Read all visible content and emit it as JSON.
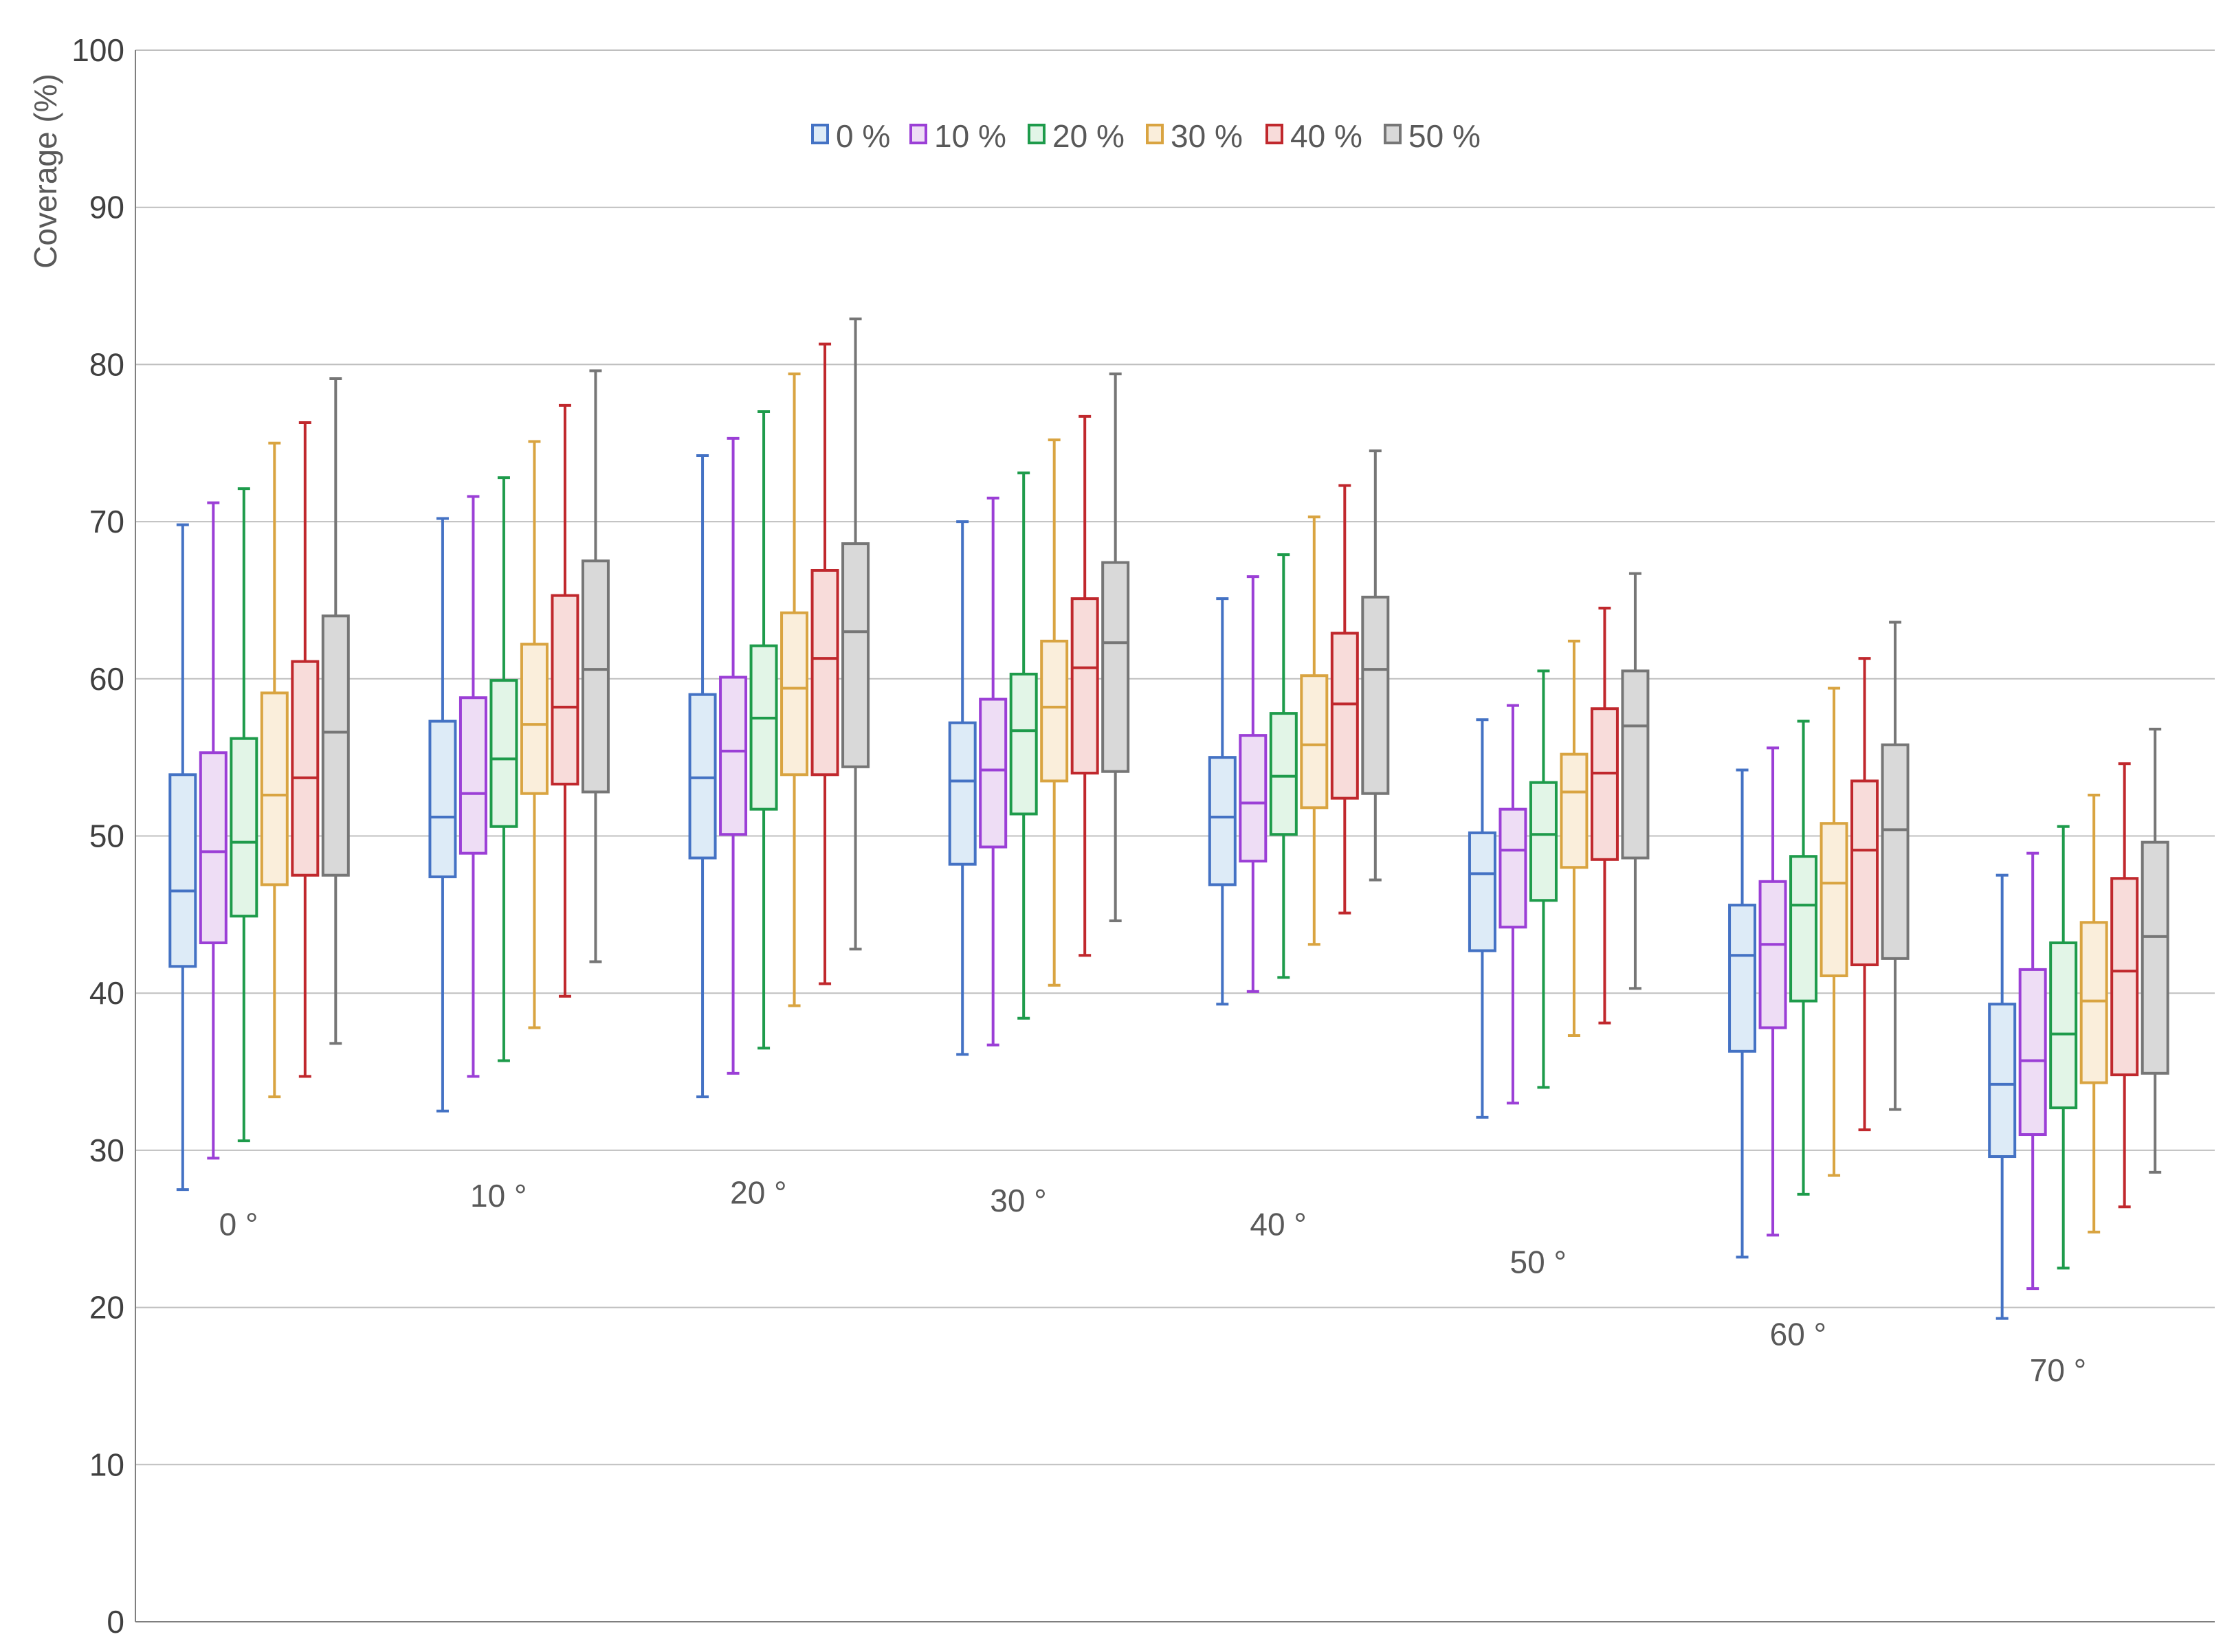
{
  "chart_data": {
    "type": "box",
    "ylabel": "Coverage (%)",
    "ylim": [
      0,
      100
    ],
    "yticks": [
      "0",
      "10",
      "20",
      "30",
      "40",
      "50",
      "60",
      "70",
      "80",
      "90",
      "100"
    ],
    "grid": true,
    "legend_position": "top-center",
    "categories": [
      "0 °",
      "10 °",
      "20 °",
      "30 °",
      "40 °",
      "50 °",
      "60 °",
      "70 °"
    ],
    "category_label_y": [
      25.3,
      27.1,
      27.3,
      26.8,
      25.3,
      22.9,
      18.3,
      16.0
    ],
    "series": [
      {
        "name": "0 %",
        "color": "#4472C4",
        "fill": "#DDEBF7",
        "boxes": [
          {
            "min": 27.5,
            "q1": 41.7,
            "median": 46.5,
            "q3": 53.9,
            "max": 69.8
          },
          {
            "min": 32.5,
            "q1": 47.4,
            "median": 51.2,
            "q3": 57.3,
            "max": 70.2
          },
          {
            "min": 33.4,
            "q1": 48.6,
            "median": 53.7,
            "q3": 59.0,
            "max": 74.2
          },
          {
            "min": 36.1,
            "q1": 48.2,
            "median": 53.5,
            "q3": 57.2,
            "max": 70.0
          },
          {
            "min": 39.3,
            "q1": 46.9,
            "median": 51.2,
            "q3": 55.0,
            "max": 65.1
          },
          {
            "min": 32.1,
            "q1": 42.7,
            "median": 47.6,
            "q3": 50.2,
            "max": 57.4
          },
          {
            "min": 23.2,
            "q1": 36.3,
            "median": 42.4,
            "q3": 45.6,
            "max": 54.2
          },
          {
            "min": 19.3,
            "q1": 29.6,
            "median": 34.2,
            "q3": 39.3,
            "max": 47.5
          }
        ]
      },
      {
        "name": "10 %",
        "color": "#9B3FD6",
        "fill": "#EEDDF5",
        "boxes": [
          {
            "min": 29.5,
            "q1": 43.2,
            "median": 49.0,
            "q3": 55.3,
            "max": 71.2
          },
          {
            "min": 34.7,
            "q1": 48.9,
            "median": 52.7,
            "q3": 58.8,
            "max": 71.6
          },
          {
            "min": 34.9,
            "q1": 50.1,
            "median": 55.4,
            "q3": 60.1,
            "max": 75.3
          },
          {
            "min": 36.7,
            "q1": 49.3,
            "median": 54.2,
            "q3": 58.7,
            "max": 71.5
          },
          {
            "min": 40.1,
            "q1": 48.4,
            "median": 52.1,
            "q3": 56.4,
            "max": 66.5
          },
          {
            "min": 33.0,
            "q1": 44.2,
            "median": 49.1,
            "q3": 51.7,
            "max": 58.3
          },
          {
            "min": 24.6,
            "q1": 37.8,
            "median": 43.1,
            "q3": 47.1,
            "max": 55.6
          },
          {
            "min": 21.2,
            "q1": 31.0,
            "median": 35.7,
            "q3": 41.5,
            "max": 48.9
          }
        ]
      },
      {
        "name": "20 %",
        "color": "#1E9B4B",
        "fill": "#E2F5E7",
        "boxes": [
          {
            "min": 30.6,
            "q1": 44.9,
            "median": 49.6,
            "q3": 56.2,
            "max": 72.1
          },
          {
            "min": 35.7,
            "q1": 50.6,
            "median": 54.9,
            "q3": 59.9,
            "max": 72.8
          },
          {
            "min": 36.5,
            "q1": 51.7,
            "median": 57.5,
            "q3": 62.1,
            "max": 77.0
          },
          {
            "min": 38.4,
            "q1": 51.4,
            "median": 56.7,
            "q3": 60.3,
            "max": 73.1
          },
          {
            "min": 41.0,
            "q1": 50.1,
            "median": 53.8,
            "q3": 57.8,
            "max": 67.9
          },
          {
            "min": 34.0,
            "q1": 45.9,
            "median": 50.1,
            "q3": 53.4,
            "max": 60.5
          },
          {
            "min": 27.2,
            "q1": 39.5,
            "median": 45.6,
            "q3": 48.7,
            "max": 57.3
          },
          {
            "min": 22.5,
            "q1": 32.7,
            "median": 37.4,
            "q3": 43.2,
            "max": 50.6
          }
        ]
      },
      {
        "name": "30 %",
        "color": "#D9A441",
        "fill": "#FAEEDB",
        "boxes": [
          {
            "min": 33.4,
            "q1": 46.9,
            "median": 52.6,
            "q3": 59.1,
            "max": 75.0
          },
          {
            "min": 37.8,
            "q1": 52.7,
            "median": 57.1,
            "q3": 62.2,
            "max": 75.1
          },
          {
            "min": 39.2,
            "q1": 53.9,
            "median": 59.4,
            "q3": 64.2,
            "max": 79.4
          },
          {
            "min": 40.5,
            "q1": 53.5,
            "median": 58.2,
            "q3": 62.4,
            "max": 75.2
          },
          {
            "min": 43.1,
            "q1": 51.8,
            "median": 55.8,
            "q3": 60.2,
            "max": 70.3
          },
          {
            "min": 37.3,
            "q1": 48.0,
            "median": 52.8,
            "q3": 55.2,
            "max": 62.4
          },
          {
            "min": 28.4,
            "q1": 41.1,
            "median": 47.0,
            "q3": 50.8,
            "max": 59.4
          },
          {
            "min": 24.8,
            "q1": 34.3,
            "median": 39.5,
            "q3": 44.5,
            "max": 52.6
          }
        ]
      },
      {
        "name": "40 %",
        "color": "#C0282D",
        "fill": "#F8DCDA",
        "boxes": [
          {
            "min": 34.7,
            "q1": 47.5,
            "median": 53.7,
            "q3": 61.1,
            "max": 76.3
          },
          {
            "min": 39.8,
            "q1": 53.3,
            "median": 58.2,
            "q3": 65.3,
            "max": 77.4
          },
          {
            "min": 40.6,
            "q1": 53.9,
            "median": 61.3,
            "q3": 66.9,
            "max": 81.3
          },
          {
            "min": 42.4,
            "q1": 54.0,
            "median": 60.7,
            "q3": 65.1,
            "max": 76.7
          },
          {
            "min": 45.1,
            "q1": 52.4,
            "median": 58.4,
            "q3": 62.9,
            "max": 72.3
          },
          {
            "min": 38.1,
            "q1": 48.5,
            "median": 54.0,
            "q3": 58.1,
            "max": 64.5
          },
          {
            "min": 31.3,
            "q1": 41.8,
            "median": 49.1,
            "q3": 53.5,
            "max": 61.3
          },
          {
            "min": 26.4,
            "q1": 34.8,
            "median": 41.4,
            "q3": 47.3,
            "max": 54.6
          }
        ]
      },
      {
        "name": "50 %",
        "color": "#767676",
        "fill": "#D9D9D9",
        "boxes": [
          {
            "min": 36.8,
            "q1": 47.5,
            "median": 56.6,
            "q3": 64.0,
            "max": 79.1
          },
          {
            "min": 42.0,
            "q1": 52.8,
            "median": 60.6,
            "q3": 67.5,
            "max": 79.6
          },
          {
            "min": 42.8,
            "q1": 54.4,
            "median": 63.0,
            "q3": 68.6,
            "max": 82.9
          },
          {
            "min": 44.6,
            "q1": 54.1,
            "median": 62.3,
            "q3": 67.4,
            "max": 79.4
          },
          {
            "min": 47.2,
            "q1": 52.7,
            "median": 60.6,
            "q3": 65.2,
            "max": 74.5
          },
          {
            "min": 40.3,
            "q1": 48.6,
            "median": 57.0,
            "q3": 60.5,
            "max": 66.7
          },
          {
            "min": 32.6,
            "q1": 42.2,
            "median": 50.4,
            "q3": 55.8,
            "max": 63.6
          },
          {
            "min": 28.6,
            "q1": 34.9,
            "median": 43.6,
            "q3": 49.6,
            "max": 56.8
          }
        ]
      }
    ]
  }
}
